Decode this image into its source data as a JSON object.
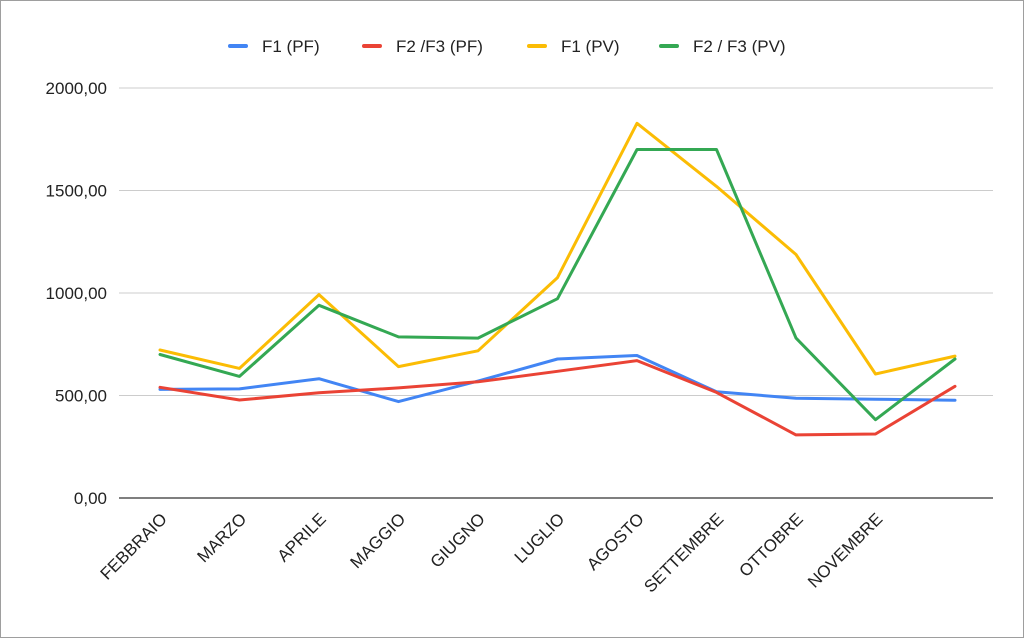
{
  "chart_data": {
    "type": "line",
    "title": "",
    "xlabel": "",
    "ylabel": "",
    "ylim": [
      0,
      2000
    ],
    "yticks": [
      0,
      500,
      1000,
      1500,
      2000
    ],
    "ytick_labels": [
      "0,00",
      "500,00",
      "1000,00",
      "1500,00",
      "2000,00"
    ],
    "grid": true,
    "legend_position": "top",
    "categories": [
      "FEBBRAIO",
      "MARZO",
      "APRILE",
      "MAGGIO",
      "GIUGNO",
      "LUGLIO",
      "AGOSTO",
      "SETTEMBRE",
      "OTTOBRE",
      "NOVEMBRE",
      ""
    ],
    "series": [
      {
        "name": "F1 (PF)",
        "color": "#4285f4",
        "values": [
          530,
          532,
          582,
          470,
          570,
          678,
          695,
          518,
          487,
          482,
          477
        ]
      },
      {
        "name": "F2 /F3 (PF)",
        "color": "#ea4335",
        "values": [
          540,
          478,
          513,
          537,
          567,
          618,
          670,
          515,
          308,
          312,
          545
        ]
      },
      {
        "name": "F1 (PV)",
        "color": "#fbbc04",
        "values": [
          722,
          632,
          992,
          641,
          718,
          1075,
          1828,
          1520,
          1188,
          605,
          692
        ]
      },
      {
        "name": "F2 / F3 (PV)",
        "color": "#34a853",
        "values": [
          700,
          593,
          940,
          786,
          780,
          972,
          1700,
          1700,
          780,
          382,
          678
        ]
      }
    ]
  }
}
